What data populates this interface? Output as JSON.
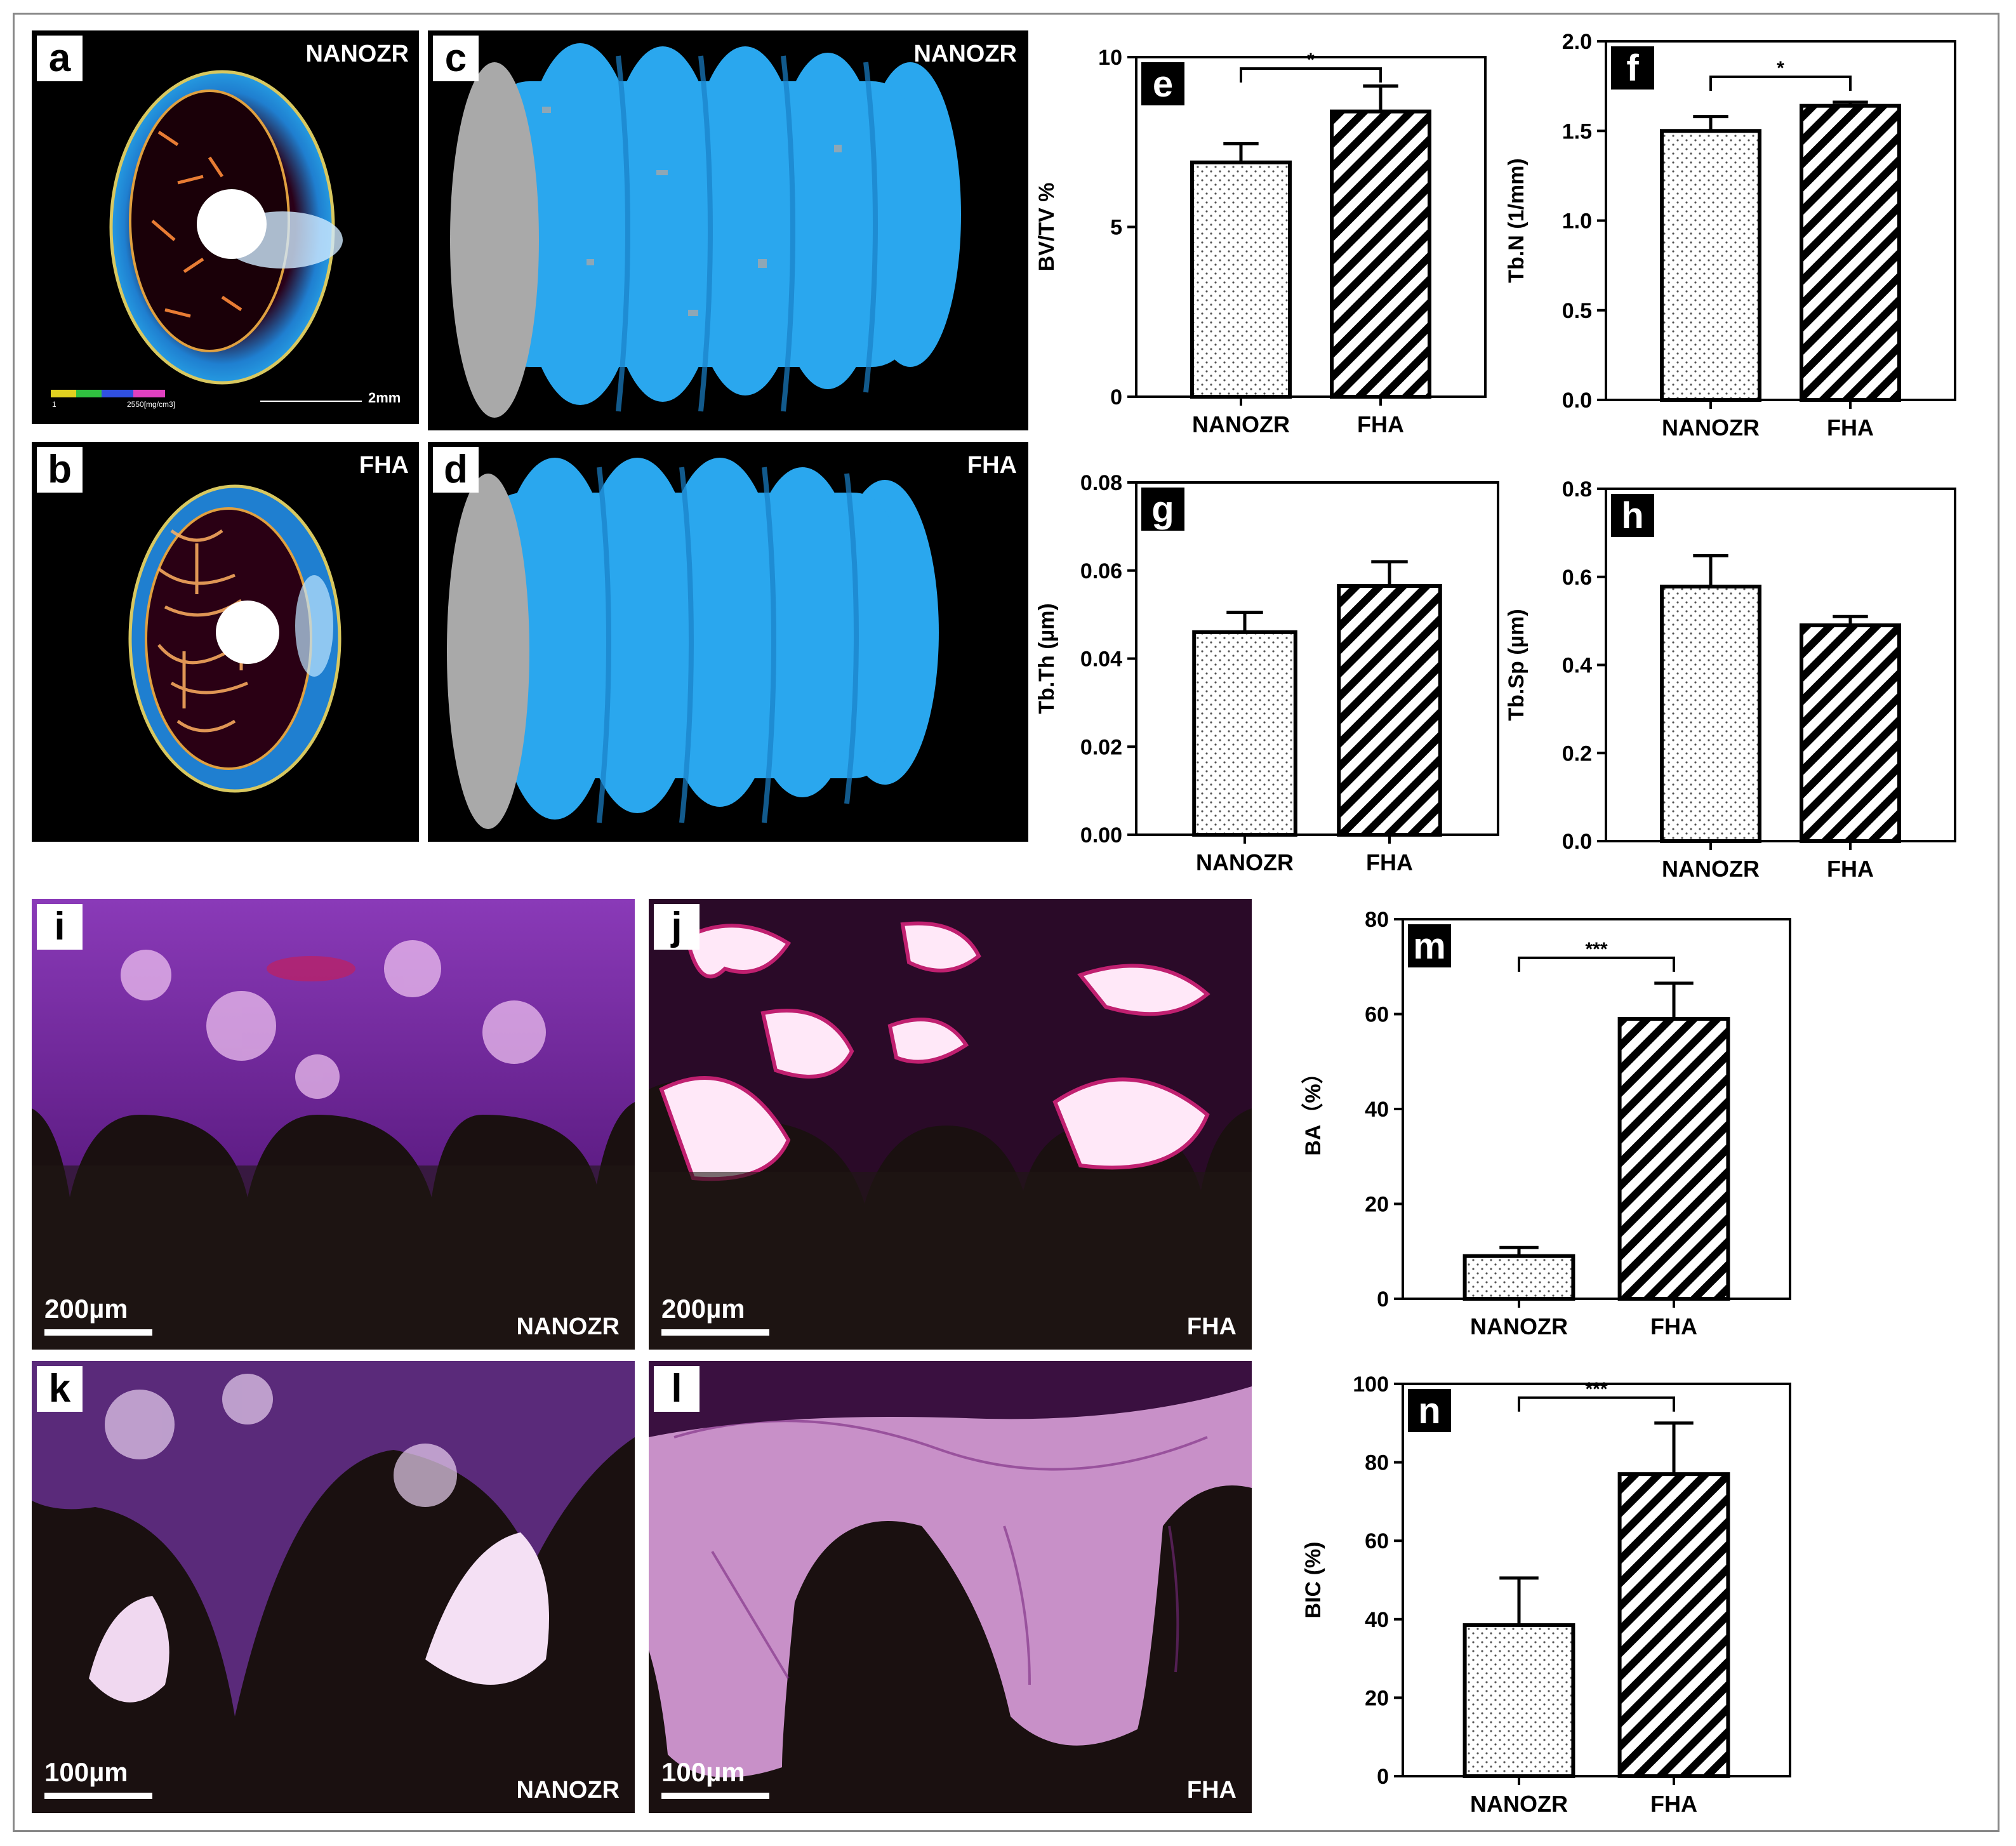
{
  "panels": {
    "a": {
      "letter": "a",
      "group": "NANOZR",
      "colorbar_min": "1",
      "colorbar_max": "2550[mg/cm3]",
      "scale": "2mm"
    },
    "b": {
      "letter": "b",
      "group": "FHA"
    },
    "c": {
      "letter": "c",
      "group": "NANOZR"
    },
    "d": {
      "letter": "d",
      "group": "FHA"
    },
    "i": {
      "letter": "i",
      "group": "NANOZR",
      "scale": "200µm"
    },
    "j": {
      "letter": "j",
      "group": "FHA",
      "scale": "200µm"
    },
    "k": {
      "letter": "k",
      "group": "NANOZR",
      "scale": "100µm"
    },
    "l": {
      "letter": "l",
      "group": "FHA",
      "scale": "100µm"
    }
  },
  "colors": {
    "bar_border": "#000000",
    "bone_scan_blue": "#2aa7ee",
    "stain_purple": "#7a2aa0",
    "stain_pink": "#e8a0d8"
  },
  "chart_data": [
    {
      "id": "e",
      "letter": "e",
      "type": "bar",
      "categories": [
        "NANOZR",
        "FHA"
      ],
      "values": [
        6.9,
        8.4
      ],
      "errors": [
        0.55,
        0.75
      ],
      "patterns": [
        "dots",
        "stripes"
      ],
      "ylabel": "BV/TV %",
      "ylim": [
        0,
        10
      ],
      "yticks": [
        "0",
        "5",
        "10"
      ],
      "significance": "*"
    },
    {
      "id": "f",
      "letter": "f",
      "type": "bar",
      "categories": [
        "NANOZR",
        "FHA"
      ],
      "values": [
        1.5,
        1.64
      ],
      "errors": [
        0.08,
        0.02
      ],
      "patterns": [
        "dots",
        "stripes"
      ],
      "ylabel": "Tb.N (1/mm)",
      "ylim": [
        0,
        2
      ],
      "yticks": [
        "0.0",
        "0.5",
        "1.0",
        "1.5",
        "2.0"
      ],
      "significance": "*"
    },
    {
      "id": "g",
      "letter": "g",
      "type": "bar",
      "categories": [
        "NANOZR",
        "FHA"
      ],
      "values": [
        0.046,
        0.0565
      ],
      "errors": [
        0.0045,
        0.0055
      ],
      "patterns": [
        "dots",
        "stripes"
      ],
      "ylabel": "Tb.Th (µm)",
      "ylim": [
        0,
        0.08
      ],
      "yticks": [
        "0.00",
        "0.02",
        "0.04",
        "0.06",
        "0.08"
      ],
      "significance": ""
    },
    {
      "id": "h",
      "letter": "h",
      "type": "bar",
      "categories": [
        "NANOZR",
        "FHA"
      ],
      "values": [
        0.578,
        0.49
      ],
      "errors": [
        0.07,
        0.02
      ],
      "patterns": [
        "dots",
        "stripes"
      ],
      "ylabel": "Tb.Sp (µm)",
      "ylim": [
        0,
        0.8
      ],
      "yticks": [
        "0.0",
        "0.2",
        "0.4",
        "0.6",
        "0.8"
      ],
      "significance": ""
    },
    {
      "id": "m",
      "letter": "m",
      "type": "bar",
      "categories": [
        "NANOZR",
        "FHA"
      ],
      "values": [
        9,
        59
      ],
      "errors": [
        1.8,
        7.5
      ],
      "patterns": [
        "dots",
        "stripes"
      ],
      "ylabel": "BA（%）",
      "ylim": [
        0,
        80
      ],
      "yticks": [
        "0",
        "20",
        "40",
        "60",
        "80"
      ],
      "significance": "***"
    },
    {
      "id": "n",
      "letter": "n",
      "type": "bar",
      "categories": [
        "NANOZR",
        "FHA"
      ],
      "values": [
        38.5,
        77
      ],
      "errors": [
        12,
        13
      ],
      "patterns": [
        "dots",
        "stripes"
      ],
      "ylabel": "BIC (%)",
      "ylim": [
        0,
        100
      ],
      "yticks": [
        "0",
        "20",
        "40",
        "60",
        "80",
        "100"
      ],
      "significance": "***"
    }
  ]
}
